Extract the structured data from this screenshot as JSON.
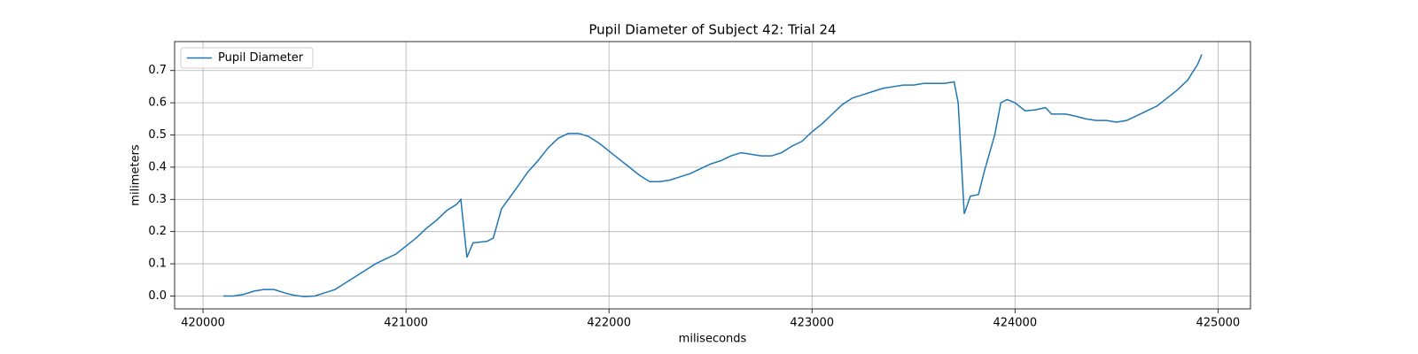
{
  "chart_data": {
    "type": "line",
    "title": "Pupil Diameter of Subject 42: Trial 24",
    "xlabel": "miliseconds",
    "ylabel": "milimeters",
    "x": [
      420100,
      420150,
      420200,
      420250,
      420300,
      420350,
      420400,
      420450,
      420500,
      420550,
      420600,
      420650,
      420700,
      420750,
      420800,
      420850,
      420900,
      420950,
      421000,
      421050,
      421100,
      421150,
      421200,
      421250,
      421270,
      421300,
      421330,
      421400,
      421430,
      421470,
      421550,
      421600,
      421650,
      421700,
      421750,
      421800,
      421850,
      421900,
      421950,
      422000,
      422050,
      422100,
      422150,
      422200,
      422250,
      422300,
      422350,
      422400,
      422450,
      422500,
      422550,
      422600,
      422650,
      422700,
      422750,
      422800,
      422850,
      422900,
      422950,
      423000,
      423050,
      423100,
      423150,
      423200,
      423250,
      423300,
      423350,
      423400,
      423450,
      423500,
      423550,
      423600,
      423650,
      423700,
      423720,
      423750,
      423780,
      423820,
      423850,
      423900,
      423930,
      423960,
      424000,
      424050,
      424100,
      424150,
      424180,
      424250,
      424300,
      424350,
      424400,
      424450,
      424500,
      424550,
      424600,
      424650,
      424700,
      424750,
      424800,
      424850,
      424900,
      424920
    ],
    "series": [
      {
        "name": "Pupil Diameter",
        "color": "#1f77b4",
        "values": [
          0.0,
          0.0,
          0.005,
          0.015,
          0.02,
          0.02,
          0.01,
          0.002,
          -0.002,
          0.0,
          0.01,
          0.02,
          0.04,
          0.06,
          0.08,
          0.1,
          0.115,
          0.13,
          0.155,
          0.18,
          0.21,
          0.235,
          0.265,
          0.285,
          0.3,
          0.12,
          0.165,
          0.17,
          0.18,
          0.27,
          0.34,
          0.385,
          0.42,
          0.46,
          0.49,
          0.505,
          0.505,
          0.495,
          0.475,
          0.45,
          0.425,
          0.4,
          0.375,
          0.355,
          0.355,
          0.36,
          0.37,
          0.38,
          0.395,
          0.41,
          0.42,
          0.435,
          0.445,
          0.44,
          0.435,
          0.435,
          0.445,
          0.465,
          0.48,
          0.51,
          0.535,
          0.565,
          0.595,
          0.615,
          0.625,
          0.635,
          0.645,
          0.65,
          0.655,
          0.655,
          0.66,
          0.66,
          0.66,
          0.665,
          0.6,
          0.255,
          0.31,
          0.315,
          0.39,
          0.5,
          0.6,
          0.61,
          0.6,
          0.575,
          0.578,
          0.585,
          0.565,
          0.565,
          0.558,
          0.55,
          0.545,
          0.545,
          0.54,
          0.545,
          0.56,
          0.575,
          0.59,
          0.615,
          0.64,
          0.67,
          0.72,
          0.75
        ]
      }
    ],
    "xlim": [
      419860,
      425160
    ],
    "xticks": [
      420000,
      421000,
      422000,
      423000,
      424000,
      425000
    ],
    "ylim": [
      -0.04,
      0.79
    ],
    "yticks": [
      {
        "value": 0,
        "label": "0.0"
      },
      0.1,
      0.2,
      0.3,
      0.4,
      0.5,
      0.6,
      0.7
    ],
    "grid": true,
    "legend": "upper left"
  }
}
